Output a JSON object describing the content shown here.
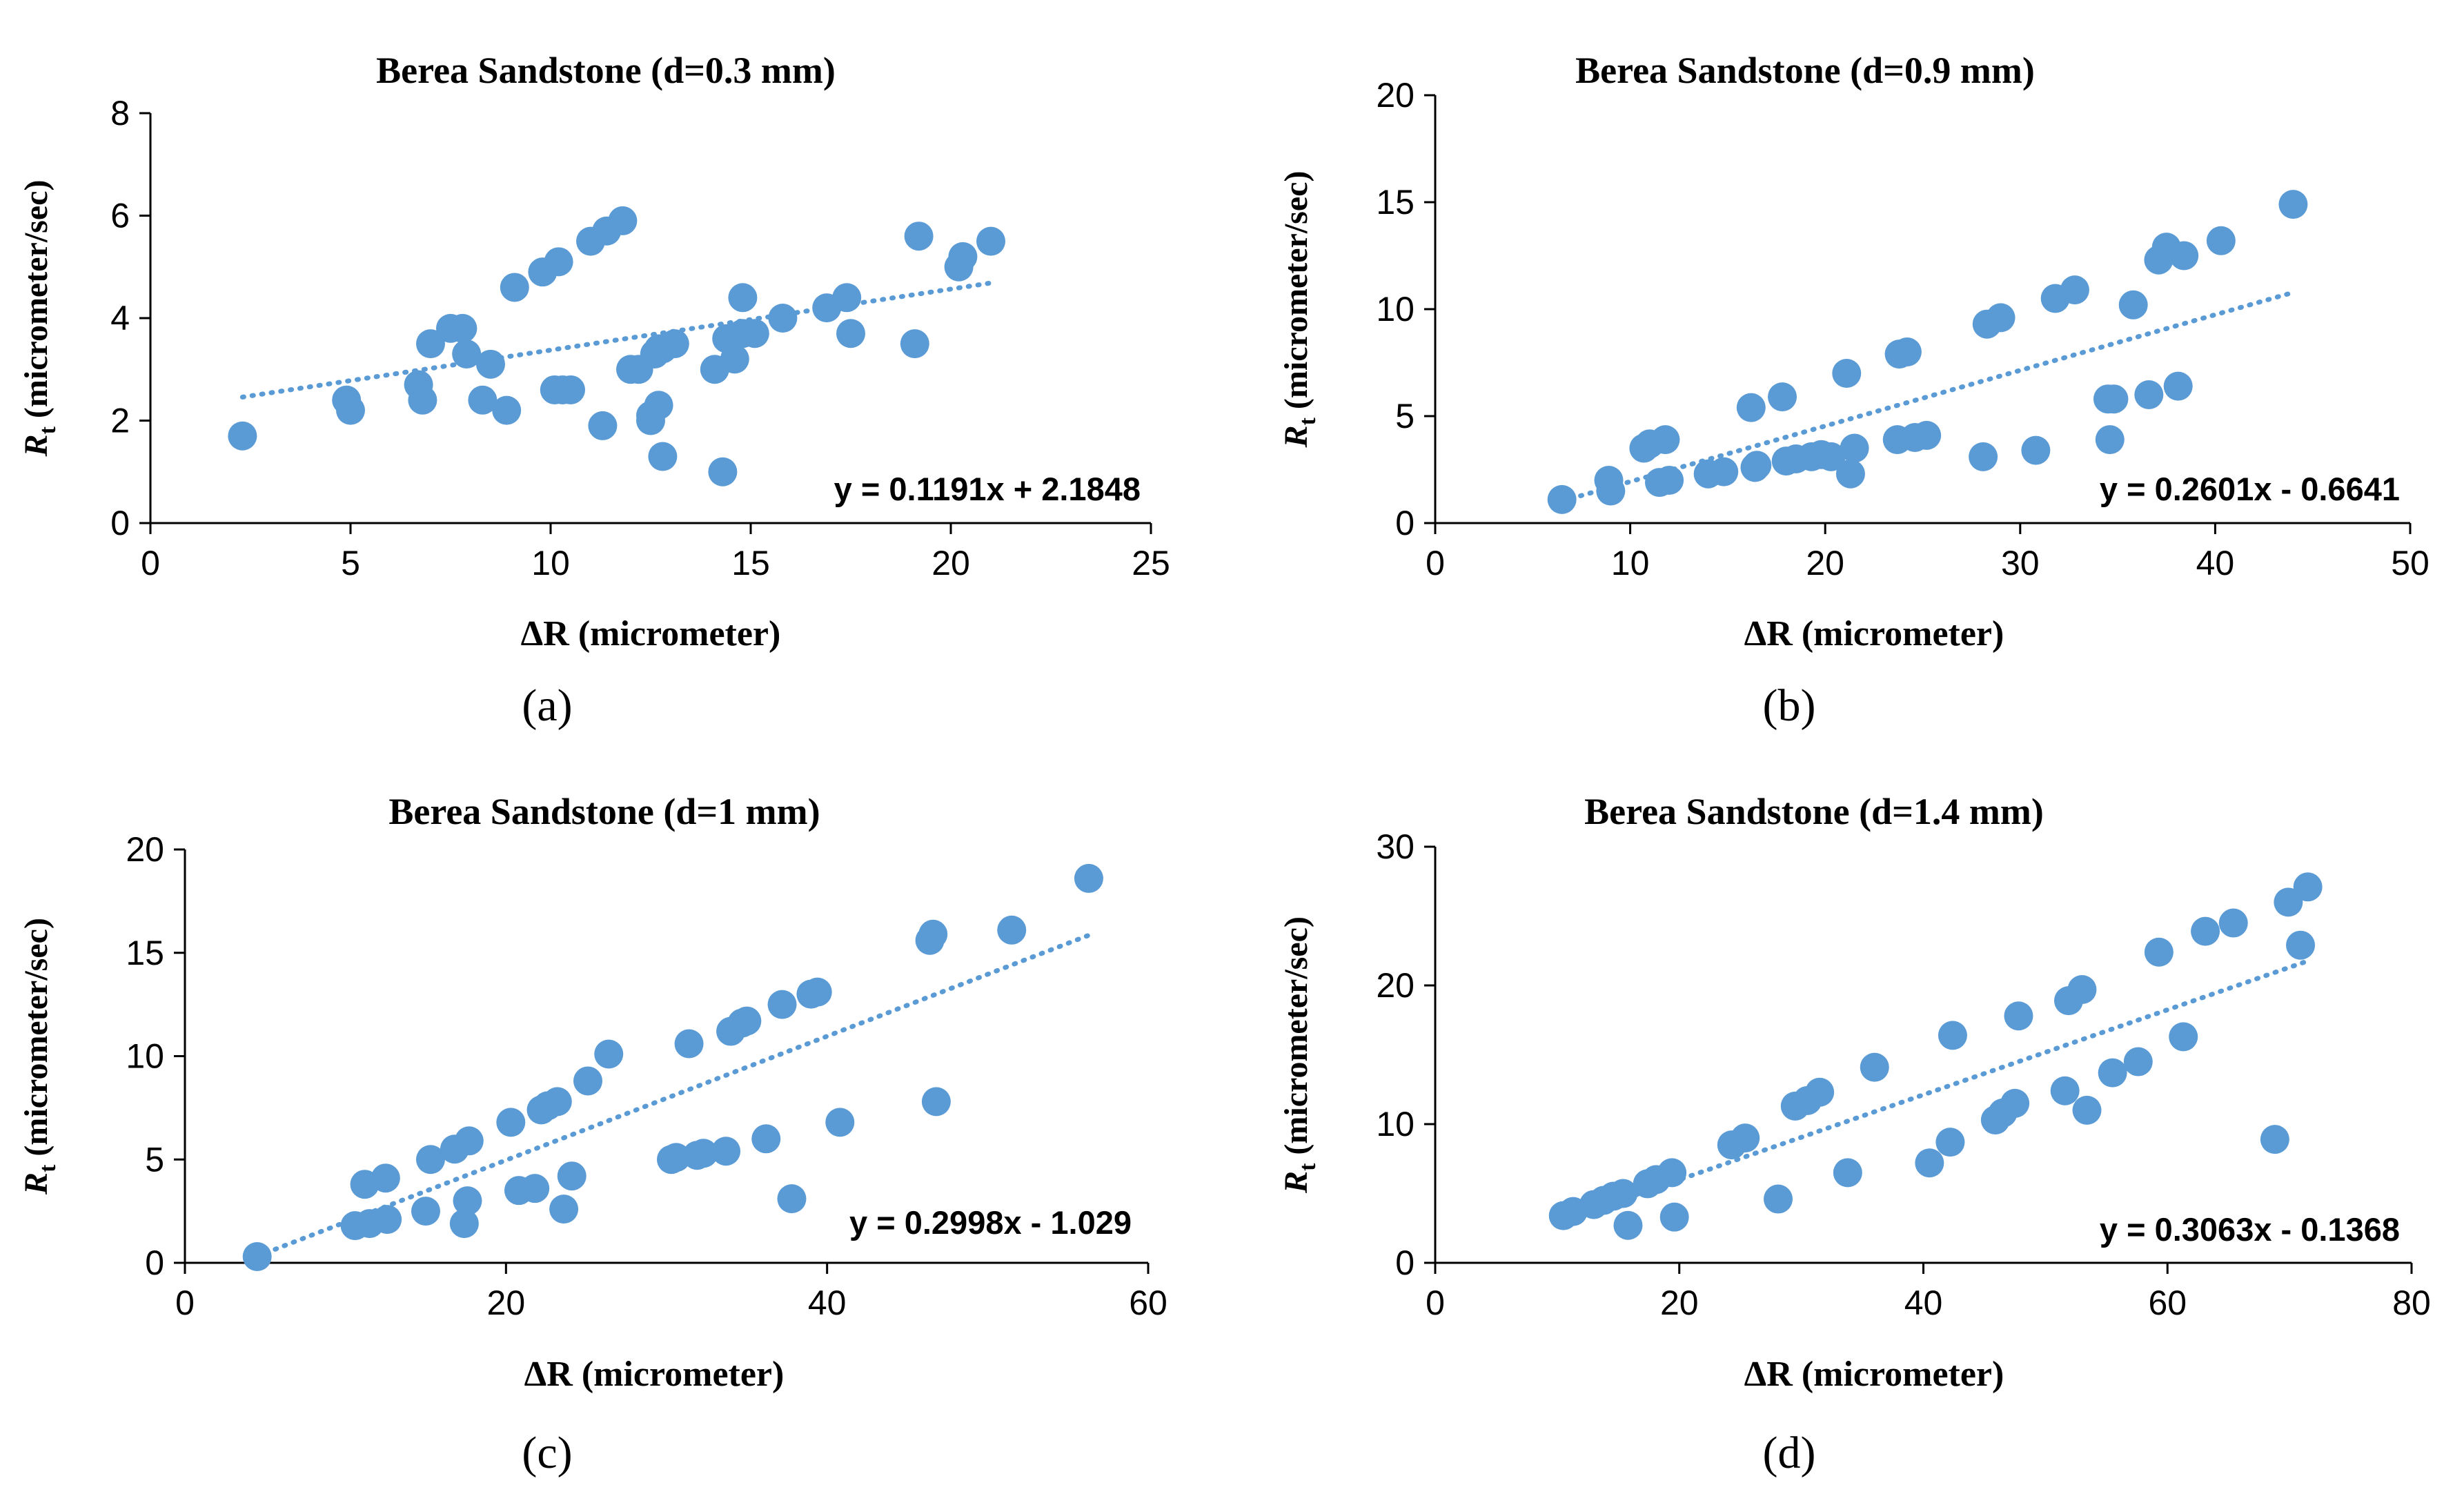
{
  "chart_data": [
    {
      "type": "scatter",
      "panel_label": "(a)",
      "title": "Berea Sandstone (d=0.3 mm)",
      "xlabel": "ΔR (micrometer)",
      "ylabel": "R_t (micrometer/sec)",
      "ylabel_main": "R",
      "ylabel_sub": "t",
      "ylabel_units": "(micrometer/sec)",
      "xlim": [
        0,
        25
      ],
      "ylim": [
        0,
        8
      ],
      "xticks": [
        0,
        5,
        10,
        15,
        20,
        25
      ],
      "yticks": [
        0,
        2,
        4,
        6,
        8
      ],
      "xtick_labels": [
        "0",
        "5",
        "10",
        "15",
        "20",
        "25"
      ],
      "ytick_labels": [
        "0",
        "2",
        "4",
        "6",
        "8"
      ],
      "marker_color": "#5b9bd5",
      "trendline": {
        "slope": 0.1191,
        "intercept": 2.1848,
        "x_range": [
          2.3,
          21.0
        ],
        "label": "y = 0.1191x + 2.1848"
      },
      "x": [
        2.3,
        4.9,
        5.0,
        6.7,
        6.8,
        7.0,
        7.5,
        7.8,
        7.9,
        8.3,
        8.5,
        8.9,
        9.1,
        9.8,
        10.1,
        10.2,
        10.3,
        10.5,
        11.0,
        11.3,
        11.4,
        11.8,
        12.0,
        12.2,
        12.5,
        12.5,
        12.6,
        12.7,
        12.7,
        12.8,
        12.8,
        13.1,
        14.1,
        14.3,
        14.4,
        14.6,
        14.8,
        14.8,
        15.1,
        15.8,
        16.9,
        17.4,
        17.5,
        19.1,
        19.2,
        20.2,
        20.3,
        21.0
      ],
      "y": [
        1.7,
        2.4,
        2.2,
        2.7,
        2.4,
        3.5,
        3.8,
        3.8,
        3.3,
        2.4,
        3.1,
        2.2,
        4.6,
        4.9,
        2.6,
        5.1,
        2.6,
        2.6,
        5.5,
        1.9,
        5.7,
        5.9,
        3.0,
        3.0,
        2.0,
        2.1,
        3.3,
        2.3,
        3.4,
        1.3,
        3.4,
        3.5,
        3.0,
        1.0,
        3.6,
        3.2,
        4.4,
        3.7,
        3.7,
        4.0,
        4.2,
        4.4,
        3.7,
        3.5,
        5.6,
        5.0,
        5.2,
        5.5
      ]
    },
    {
      "type": "scatter",
      "panel_label": "(b)",
      "title": "Berea Sandstone (d=0.9 mm)",
      "xlabel": "ΔR (micrometer)",
      "ylabel": "R_t (micrometer/sec)",
      "ylabel_main": "R",
      "ylabel_sub": "t",
      "ylabel_units": "(micrometer/sec)",
      "xlim": [
        0,
        50
      ],
      "ylim": [
        0,
        20
      ],
      "xticks": [
        0,
        10,
        20,
        30,
        40,
        50
      ],
      "yticks": [
        0,
        5,
        10,
        15,
        20
      ],
      "xtick_labels": [
        "0",
        "10",
        "20",
        "30",
        "40",
        "50"
      ],
      "ytick_labels": [
        "0",
        "5",
        "10",
        "15",
        "20"
      ],
      "marker_color": "#5b9bd5",
      "trendline": {
        "slope": 0.2601,
        "intercept": -0.6641,
        "x_range": [
          6.5,
          44.0
        ],
        "label": "y = 0.2601x - 0.6641"
      },
      "x": [
        6.5,
        8.9,
        9.0,
        10.7,
        11.0,
        11.5,
        11.8,
        12.0,
        14.0,
        14.8,
        16.2,
        16.4,
        16.5,
        17.8,
        18.0,
        18.5,
        19.3,
        19.8,
        20.3,
        21.1,
        21.3,
        21.5,
        23.7,
        23.8,
        24.2,
        24.6,
        25.2,
        28.1,
        28.3,
        29.0,
        30.8,
        31.8,
        32.8,
        34.5,
        34.6,
        34.8,
        35.8,
        36.6,
        37.1,
        37.5,
        38.1,
        38.4,
        40.3,
        44.0
      ],
      "y": [
        1.1,
        2.0,
        1.5,
        3.5,
        3.7,
        1.9,
        3.9,
        2.0,
        2.3,
        2.4,
        5.4,
        2.6,
        2.7,
        5.9,
        2.9,
        3.0,
        3.1,
        3.2,
        3.1,
        7.0,
        2.3,
        3.5,
        3.9,
        7.9,
        8.0,
        4.0,
        4.1,
        3.1,
        9.3,
        9.6,
        3.4,
        10.5,
        10.9,
        5.8,
        3.9,
        5.8,
        10.2,
        6.0,
        12.3,
        12.9,
        6.4,
        12.5,
        13.2,
        14.9
      ]
    },
    {
      "type": "scatter",
      "panel_label": "(c)",
      "title": "Berea Sandstone (d=1 mm)",
      "xlabel": "ΔR (micrometer)",
      "ylabel": "R_t (micrometer/sec)",
      "ylabel_main": "R",
      "ylabel_sub": "t",
      "ylabel_units": "(micrometer/sec)",
      "xlim": [
        0,
        60
      ],
      "ylim": [
        0,
        20
      ],
      "xticks": [
        0,
        20,
        40,
        60
      ],
      "yticks": [
        0,
        5,
        10,
        15,
        20
      ],
      "xtick_labels": [
        "0",
        "20",
        "40",
        "60"
      ],
      "ytick_labels": [
        "0",
        "5",
        "10",
        "15",
        "20"
      ],
      "marker_color": "#5b9bd5",
      "trendline": {
        "slope": 0.2998,
        "intercept": -1.029,
        "x_range": [
          4.5,
          56.3
        ],
        "label": "y = 0.2998x - 1.029"
      },
      "x": [
        4.5,
        10.6,
        11.2,
        11.5,
        12.5,
        12.6,
        15.0,
        15.3,
        16.8,
        17.4,
        17.6,
        17.7,
        20.3,
        20.8,
        21.8,
        22.2,
        22.6,
        23.2,
        23.6,
        24.1,
        25.1,
        26.4,
        30.3,
        30.6,
        31.4,
        31.9,
        32.3,
        33.7,
        34.0,
        34.7,
        35.0,
        36.2,
        37.2,
        37.8,
        39.0,
        39.4,
        40.8,
        46.4,
        46.6,
        46.8,
        51.5,
        56.3
      ],
      "y": [
        0.3,
        1.8,
        3.8,
        1.9,
        4.1,
        2.1,
        2.5,
        5.0,
        5.5,
        1.9,
        3.0,
        5.9,
        6.8,
        3.5,
        3.6,
        7.4,
        7.6,
        7.8,
        2.6,
        4.2,
        8.8,
        10.1,
        5.0,
        5.1,
        10.6,
        5.2,
        5.3,
        5.4,
        11.2,
        11.6,
        11.7,
        6.0,
        12.5,
        3.1,
        13.0,
        13.1,
        6.8,
        15.6,
        15.9,
        7.8,
        16.1,
        18.6
      ]
    },
    {
      "type": "scatter",
      "panel_label": "(d)",
      "title": "Berea Sandstone (d=1.4 mm)",
      "xlabel": "ΔR (micrometer)",
      "ylabel": "R_t (micrometer/sec)",
      "ylabel_main": "R",
      "ylabel_sub": "t",
      "ylabel_units": "(micrometer/sec)",
      "xlim": [
        0,
        80
      ],
      "ylim": [
        0,
        30
      ],
      "xticks": [
        0,
        20,
        40,
        60,
        80
      ],
      "yticks": [
        0,
        10,
        20,
        30
      ],
      "xtick_labels": [
        "0",
        "20",
        "40",
        "60",
        "80"
      ],
      "ytick_labels": [
        "0",
        "10",
        "20",
        "30"
      ],
      "marker_color": "#5b9bd5",
      "trendline": {
        "slope": 0.3063,
        "intercept": -0.1368,
        "x_range": [
          10.5,
          71.3
        ],
        "label": "y = 0.3063x - 0.1368"
      },
      "x": [
        10.5,
        11.3,
        13.0,
        13.8,
        14.6,
        15.4,
        15.8,
        17.4,
        18.1,
        19.4,
        19.6,
        24.3,
        25.4,
        28.1,
        29.5,
        30.5,
        31.5,
        33.8,
        36.0,
        40.5,
        42.2,
        42.4,
        45.9,
        46.5,
        47.5,
        47.8,
        51.6,
        51.9,
        53.0,
        53.4,
        55.5,
        57.6,
        59.3,
        61.3,
        63.1,
        65.4,
        68.8,
        69.9,
        70.9,
        71.5
      ],
      "y": [
        3.4,
        3.7,
        4.2,
        4.5,
        4.8,
        5.0,
        2.7,
        5.7,
        6.0,
        6.5,
        3.3,
        8.5,
        9.0,
        4.6,
        11.3,
        11.7,
        12.3,
        6.5,
        14.1,
        7.2,
        8.7,
        16.4,
        10.3,
        10.8,
        11.5,
        17.8,
        12.4,
        18.9,
        19.7,
        11.0,
        13.7,
        14.5,
        22.4,
        16.3,
        23.9,
        24.5,
        8.9,
        26.0,
        22.9,
        27.1
      ]
    }
  ]
}
